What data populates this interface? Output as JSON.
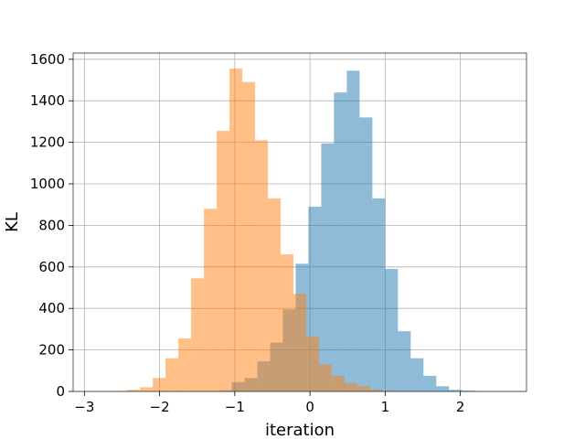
{
  "chart_data": {
    "type": "bar",
    "subtype": "overlapping-histogram",
    "title": "",
    "xlabel": "iteration",
    "ylabel": "KL",
    "xlim": [
      -3.15,
      2.88
    ],
    "ylim": [
      0,
      1630
    ],
    "xticks": [
      -3,
      -2,
      -1,
      0,
      1,
      2
    ],
    "yticks": [
      0,
      200,
      400,
      600,
      800,
      1000,
      1200,
      1400,
      1600
    ],
    "grid": true,
    "legend": "none",
    "bar_opacity": 0.5,
    "series": [
      {
        "color": "#1f77b4",
        "bins": [
          {
            "x0": -1.38,
            "x1": -1.21,
            "count": 2
          },
          {
            "x0": -1.21,
            "x1": -1.04,
            "count": 5
          },
          {
            "x0": -1.04,
            "x1": -0.87,
            "count": 45
          },
          {
            "x0": -0.87,
            "x1": -0.7,
            "count": 65
          },
          {
            "x0": -0.7,
            "x1": -0.53,
            "count": 145
          },
          {
            "x0": -0.53,
            "x1": -0.36,
            "count": 235
          },
          {
            "x0": -0.36,
            "x1": -0.19,
            "count": 395
          },
          {
            "x0": -0.19,
            "x1": -0.02,
            "count": 615
          },
          {
            "x0": -0.02,
            "x1": 0.15,
            "count": 890
          },
          {
            "x0": 0.15,
            "x1": 0.32,
            "count": 1195
          },
          {
            "x0": 0.32,
            "x1": 0.49,
            "count": 1440
          },
          {
            "x0": 0.49,
            "x1": 0.66,
            "count": 1545
          },
          {
            "x0": 0.66,
            "x1": 0.83,
            "count": 1320
          },
          {
            "x0": 0.83,
            "x1": 1.0,
            "count": 930
          },
          {
            "x0": 1.0,
            "x1": 1.17,
            "count": 590
          },
          {
            "x0": 1.17,
            "x1": 1.34,
            "count": 290
          },
          {
            "x0": 1.34,
            "x1": 1.51,
            "count": 160
          },
          {
            "x0": 1.51,
            "x1": 1.68,
            "count": 75
          },
          {
            "x0": 1.68,
            "x1": 1.85,
            "count": 25
          },
          {
            "x0": 1.85,
            "x1": 2.02,
            "count": 8
          },
          {
            "x0": 2.02,
            "x1": 2.19,
            "count": 4
          },
          {
            "x0": 2.19,
            "x1": 2.36,
            "count": 1
          }
        ]
      },
      {
        "color": "#ff7f0e",
        "bins": [
          {
            "x0": -2.6,
            "x1": -2.43,
            "count": 3
          },
          {
            "x0": -2.43,
            "x1": -2.26,
            "count": 8
          },
          {
            "x0": -2.26,
            "x1": -2.09,
            "count": 20
          },
          {
            "x0": -2.09,
            "x1": -1.92,
            "count": 65
          },
          {
            "x0": -1.92,
            "x1": -1.75,
            "count": 160
          },
          {
            "x0": -1.75,
            "x1": -1.58,
            "count": 255
          },
          {
            "x0": -1.58,
            "x1": -1.41,
            "count": 545
          },
          {
            "x0": -1.41,
            "x1": -1.24,
            "count": 880
          },
          {
            "x0": -1.24,
            "x1": -1.07,
            "count": 1255
          },
          {
            "x0": -1.07,
            "x1": -0.9,
            "count": 1555
          },
          {
            "x0": -0.9,
            "x1": -0.73,
            "count": 1490
          },
          {
            "x0": -0.73,
            "x1": -0.56,
            "count": 1210
          },
          {
            "x0": -0.56,
            "x1": -0.39,
            "count": 930
          },
          {
            "x0": -0.39,
            "x1": -0.22,
            "count": 660
          },
          {
            "x0": -0.22,
            "x1": -0.05,
            "count": 470
          },
          {
            "x0": -0.05,
            "x1": 0.12,
            "count": 265
          },
          {
            "x0": 0.12,
            "x1": 0.29,
            "count": 130
          },
          {
            "x0": 0.29,
            "x1": 0.46,
            "count": 75
          },
          {
            "x0": 0.46,
            "x1": 0.63,
            "count": 40
          },
          {
            "x0": 0.63,
            "x1": 0.8,
            "count": 25
          },
          {
            "x0": 0.8,
            "x1": 0.97,
            "count": 8
          },
          {
            "x0": 0.97,
            "x1": 1.14,
            "count": 3
          }
        ]
      }
    ]
  }
}
